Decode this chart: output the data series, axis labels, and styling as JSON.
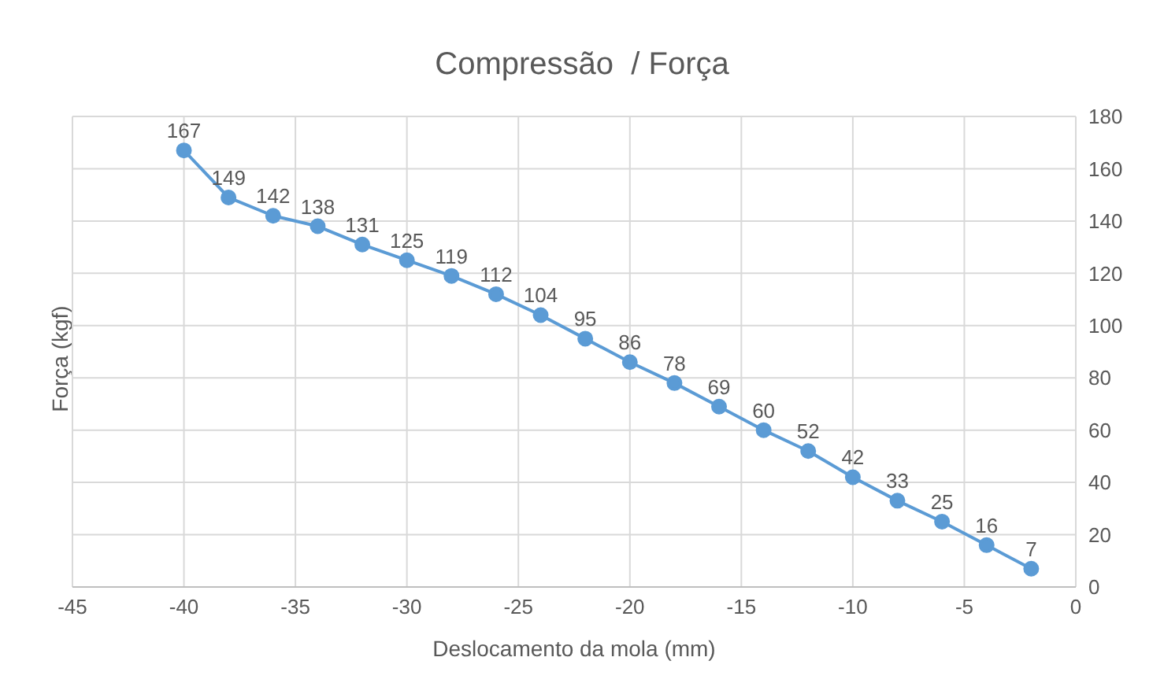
{
  "chart_data": {
    "type": "line",
    "title": "Compressão  / Força",
    "xlabel": "Deslocamento da mola (mm)",
    "ylabel": "Força (kgf)",
    "x": [
      -40,
      -38,
      -36,
      -34,
      -32,
      -30,
      -28,
      -26,
      -24,
      -22,
      -20,
      -18,
      -16,
      -14,
      -12,
      -10,
      -8,
      -6,
      -4,
      -2
    ],
    "series": [
      {
        "color": "#5b9bd5",
        "values": [
          167,
          149,
          142,
          138,
          131,
          125,
          119,
          112,
          104,
          95,
          86,
          78,
          69,
          60,
          52,
          42,
          33,
          25,
          16,
          7
        ]
      }
    ],
    "xlim": [
      -45,
      0
    ],
    "xticks": [
      -45,
      -40,
      -35,
      -30,
      -25,
      -20,
      -15,
      -10,
      -5,
      0
    ],
    "ylim": [
      0,
      180
    ],
    "yticks": [
      0,
      20,
      40,
      60,
      80,
      100,
      120,
      140,
      160,
      180
    ],
    "grid": true,
    "marker": "circle",
    "line_style": "solid",
    "data_labels": true,
    "legend": false
  }
}
